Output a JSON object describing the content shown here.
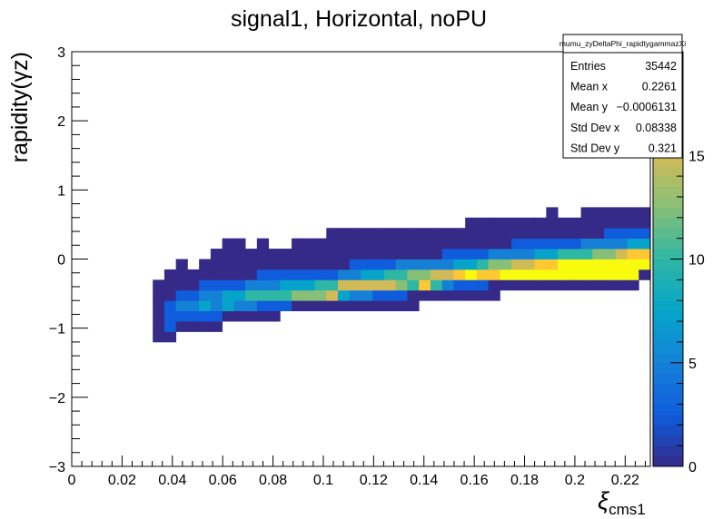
{
  "chart_data": {
    "type": "heatmap",
    "title": "signal1, Horizontal, noPU",
    "xlabel": "ξ",
    "xlabel_sub": "cms1",
    "ylabel": "rapidity(γz)",
    "xlim": [
      0,
      0.23
    ],
    "ylim": [
      -3,
      3
    ],
    "zlim": [
      0,
      20
    ],
    "x_ticks": [
      0,
      0.02,
      0.04,
      0.06,
      0.08,
      0.1,
      0.12,
      0.14,
      0.16,
      0.18,
      0.2,
      0.22
    ],
    "x_tick_labels": [
      "0",
      "0.02",
      "0.04",
      "0.06",
      "0.08",
      "0.1",
      "0.12",
      "0.14",
      "0.16",
      "0.18",
      "0.2",
      "0.22"
    ],
    "y_ticks": [
      -3,
      -2,
      -1,
      0,
      1,
      2,
      3
    ],
    "y_tick_labels": [
      "−3",
      "−2",
      "−1",
      "0",
      "1",
      "2",
      "3"
    ],
    "z_ticks": [
      0,
      5,
      10,
      15
    ],
    "z_tick_labels": [
      "0",
      "5",
      "10",
      "15"
    ],
    "colormap": [
      "#352a87",
      "#0f5cdd",
      "#1481d6",
      "#06a4ca",
      "#2eb7a4",
      "#87bf77",
      "#d1bb59",
      "#fec832",
      "#f9fb0e"
    ],
    "bin_width_x": 0.0046,
    "bin_width_y": 0.15,
    "columns": [
      {
        "x": 0.0345,
        "ybins": [
          -1.125,
          -0.975,
          -0.825,
          -0.675,
          -0.525,
          -0.375
        ],
        "values": [
          1,
          2,
          2,
          2,
          1,
          1
        ]
      },
      {
        "x": 0.0391,
        "ybins": [
          -1.125,
          -0.975,
          -0.825,
          -0.675,
          -0.525,
          -0.375,
          -0.225
        ],
        "values": [
          1,
          3,
          4,
          3,
          2,
          1,
          1
        ]
      },
      {
        "x": 0.0437,
        "ybins": [
          -0.975,
          -0.825,
          -0.675,
          -0.525,
          -0.375,
          -0.225,
          -0.075
        ],
        "values": [
          1,
          4,
          5,
          3,
          2,
          1,
          1
        ]
      },
      {
        "x": 0.0483,
        "ybins": [
          -0.975,
          -0.825,
          -0.675,
          -0.525,
          -0.375,
          -0.225
        ],
        "values": [
          2,
          4,
          6,
          4,
          2,
          1
        ]
      },
      {
        "x": 0.0529,
        "ybins": [
          -0.975,
          -0.825,
          -0.675,
          -0.525,
          -0.375,
          -0.225,
          -0.075
        ],
        "values": [
          1,
          3,
          7,
          5,
          3,
          1,
          1
        ]
      },
      {
        "x": 0.0575,
        "ybins": [
          -0.975,
          -0.825,
          -0.675,
          -0.525,
          -0.375,
          -0.225,
          -0.075,
          0.075
        ],
        "values": [
          1,
          3,
          6,
          6,
          3,
          1,
          1,
          1
        ]
      },
      {
        "x": 0.0621,
        "ybins": [
          -0.825,
          -0.675,
          -0.525,
          -0.375,
          -0.225,
          -0.075,
          0.075,
          0.225
        ],
        "values": [
          2,
          7,
          7,
          4,
          2,
          1,
          1,
          1
        ]
      },
      {
        "x": 0.0667,
        "ybins": [
          -0.825,
          -0.675,
          -0.525,
          -0.375,
          -0.225,
          -0.075,
          0.075,
          0.225
        ],
        "values": [
          2,
          6,
          8,
          4,
          2,
          1,
          1,
          1
        ]
      },
      {
        "x": 0.0713,
        "ybins": [
          -0.825,
          -0.675,
          -0.525,
          -0.375,
          -0.225,
          -0.075,
          0.075
        ],
        "values": [
          1,
          5,
          9,
          5,
          2,
          1,
          1
        ]
      },
      {
        "x": 0.0759,
        "ybins": [
          -0.825,
          -0.675,
          -0.525,
          -0.375,
          -0.225,
          -0.075,
          0.075,
          0.225
        ],
        "values": [
          1,
          4,
          10,
          6,
          3,
          1,
          1,
          1
        ]
      },
      {
        "x": 0.0805,
        "ybins": [
          -0.825,
          -0.675,
          -0.525,
          -0.375,
          -0.225,
          -0.075,
          0.075
        ],
        "values": [
          1,
          3,
          11,
          6,
          3,
          1,
          1
        ]
      },
      {
        "x": 0.0851,
        "ybins": [
          -0.675,
          -0.525,
          -0.375,
          -0.225,
          -0.075,
          0.075
        ],
        "values": [
          3,
          11,
          7,
          3,
          1,
          1
        ]
      },
      {
        "x": 0.0897,
        "ybins": [
          -0.675,
          -0.525,
          -0.375,
          -0.225,
          -0.075,
          0.075,
          0.225
        ],
        "values": [
          2,
          12,
          7,
          3,
          1,
          1,
          1
        ]
      },
      {
        "x": 0.0943,
        "ybins": [
          -0.675,
          -0.525,
          -0.375,
          -0.225,
          -0.075,
          0.075,
          0.225
        ],
        "values": [
          2,
          12,
          8,
          4,
          2,
          1,
          1
        ]
      },
      {
        "x": 0.0989,
        "ybins": [
          -0.675,
          -0.525,
          -0.375,
          -0.225,
          -0.075,
          0.075,
          0.225
        ],
        "values": [
          1,
          13,
          9,
          4,
          2,
          1,
          1
        ]
      },
      {
        "x": 0.1035,
        "ybins": [
          -0.675,
          -0.525,
          -0.375,
          -0.225,
          -0.075,
          0.075,
          0.225,
          0.375
        ],
        "values": [
          1,
          14,
          9,
          4,
          2,
          1,
          1,
          1
        ]
      },
      {
        "x": 0.1081,
        "ybins": [
          -0.675,
          -0.525,
          -0.375,
          -0.225,
          -0.075,
          0.075,
          0.225,
          0.375
        ],
        "values": [
          1,
          8,
          14,
          5,
          2,
          1,
          1,
          1
        ]
      },
      {
        "x": 0.1127,
        "ybins": [
          -0.675,
          -0.525,
          -0.375,
          -0.225,
          -0.075,
          0.075,
          0.225,
          0.375
        ],
        "values": [
          1,
          6,
          14,
          6,
          3,
          1,
          1,
          1
        ]
      },
      {
        "x": 0.1173,
        "ybins": [
          -0.675,
          -0.525,
          -0.375,
          -0.225,
          -0.075,
          0.075,
          0.225,
          0.375
        ],
        "values": [
          1,
          5,
          15,
          7,
          3,
          1,
          1,
          1
        ]
      },
      {
        "x": 0.1219,
        "ybins": [
          -0.675,
          -0.525,
          -0.375,
          -0.225,
          -0.075,
          0.075,
          0.225,
          0.375
        ],
        "values": [
          1,
          4,
          15,
          8,
          3,
          1,
          1,
          1
        ]
      },
      {
        "x": 0.1265,
        "ybins": [
          -0.675,
          -0.525,
          -0.375,
          -0.225,
          -0.075,
          0.075,
          0.225,
          0.375
        ],
        "values": [
          1,
          3,
          14,
          9,
          4,
          2,
          1,
          1
        ]
      },
      {
        "x": 0.1311,
        "ybins": [
          -0.675,
          -0.525,
          -0.375,
          -0.225,
          -0.075,
          0.075,
          0.225,
          0.375
        ],
        "values": [
          1,
          3,
          12,
          11,
          5,
          2,
          1,
          1
        ]
      },
      {
        "x": 0.1357,
        "ybins": [
          -0.675,
          -0.525,
          -0.375,
          -0.225,
          -0.075,
          0.075,
          0.225,
          0.375
        ],
        "values": [
          1,
          2,
          10,
          13,
          5,
          2,
          1,
          1
        ]
      },
      {
        "x": 0.1403,
        "ybins": [
          -0.525,
          -0.375,
          -0.225,
          -0.075,
          0.075,
          0.225,
          0.375
        ],
        "values": [
          2,
          17,
          12,
          5,
          2,
          1,
          1
        ]
      },
      {
        "x": 0.1449,
        "ybins": [
          -0.525,
          -0.375,
          -0.225,
          -0.075,
          0.075,
          0.225,
          0.375
        ],
        "values": [
          1,
          10,
          14,
          6,
          2,
          1,
          1
        ]
      },
      {
        "x": 0.1495,
        "ybins": [
          -0.525,
          -0.375,
          -0.225,
          -0.075,
          0.075,
          0.225,
          0.375
        ],
        "values": [
          1,
          6,
          15,
          6,
          3,
          1,
          1
        ]
      },
      {
        "x": 0.1541,
        "ybins": [
          -0.525,
          -0.375,
          -0.225,
          -0.075,
          0.075,
          0.225,
          0.375
        ],
        "values": [
          1,
          4,
          17,
          7,
          3,
          1,
          1
        ]
      },
      {
        "x": 0.1587,
        "ybins": [
          -0.525,
          -0.375,
          -0.225,
          -0.075,
          0.075,
          0.225,
          0.375,
          0.525
        ],
        "values": [
          1,
          3,
          18,
          8,
          4,
          2,
          1,
          1
        ]
      },
      {
        "x": 0.1633,
        "ybins": [
          -0.525,
          -0.375,
          -0.225,
          -0.075,
          0.075,
          0.225,
          0.375,
          0.525
        ],
        "values": [
          1,
          3,
          17,
          10,
          4,
          2,
          1,
          1
        ]
      },
      {
        "x": 0.1679,
        "ybins": [
          -0.525,
          -0.375,
          -0.225,
          -0.075,
          0.075,
          0.225,
          0.375,
          0.525
        ],
        "values": [
          1,
          2,
          16,
          12,
          5,
          2,
          1,
          1
        ]
      },
      {
        "x": 0.1725,
        "ybins": [
          -0.375,
          -0.225,
          -0.075,
          0.075,
          0.225,
          0.375,
          0.525
        ],
        "values": [
          2,
          18,
          13,
          5,
          2,
          1,
          1
        ]
      },
      {
        "x": 0.1771,
        "ybins": [
          -0.375,
          -0.225,
          -0.075,
          0.075,
          0.225,
          0.375,
          0.525
        ],
        "values": [
          2,
          19,
          14,
          6,
          3,
          1,
          1
        ]
      },
      {
        "x": 0.1817,
        "ybins": [
          -0.375,
          -0.225,
          -0.075,
          0.075,
          0.225,
          0.375,
          0.525
        ],
        "values": [
          2,
          19,
          15,
          6,
          3,
          1,
          1
        ]
      },
      {
        "x": 0.1863,
        "ybins": [
          -0.375,
          -0.225,
          -0.075,
          0.075,
          0.225,
          0.375,
          0.525
        ],
        "values": [
          2,
          20,
          16,
          7,
          3,
          1,
          1
        ]
      },
      {
        "x": 0.1909,
        "ybins": [
          -0.375,
          -0.225,
          -0.075,
          0.075,
          0.225,
          0.375,
          0.525,
          0.675
        ],
        "values": [
          2,
          18,
          17,
          8,
          4,
          2,
          1,
          1
        ]
      },
      {
        "x": 0.1955,
        "ybins": [
          -0.375,
          -0.225,
          -0.075,
          0.075,
          0.225,
          0.375,
          0.525
        ],
        "values": [
          2,
          20,
          20,
          9,
          4,
          2,
          1
        ]
      },
      {
        "x": 0.2001,
        "ybins": [
          -0.375,
          -0.225,
          -0.075,
          0.075,
          0.225,
          0.375,
          0.525
        ],
        "values": [
          1,
          20,
          20,
          9,
          4,
          2,
          1
        ]
      },
      {
        "x": 0.2047,
        "ybins": [
          -0.375,
          -0.225,
          -0.075,
          0.075,
          0.225,
          0.375,
          0.525,
          0.675
        ],
        "values": [
          1,
          20,
          20,
          11,
          5,
          2,
          1,
          1
        ]
      },
      {
        "x": 0.2093,
        "ybins": [
          -0.375,
          -0.225,
          -0.075,
          0.075,
          0.225,
          0.375,
          0.525,
          0.675
        ],
        "values": [
          1,
          19,
          20,
          12,
          5,
          2,
          1,
          1
        ]
      },
      {
        "x": 0.2139,
        "ybins": [
          -0.375,
          -0.225,
          -0.075,
          0.075,
          0.225,
          0.375,
          0.525,
          0.675
        ],
        "values": [
          1,
          20,
          20,
          13,
          6,
          3,
          1,
          1
        ]
      },
      {
        "x": 0.2185,
        "ybins": [
          -0.375,
          -0.225,
          -0.075,
          0.075,
          0.225,
          0.375,
          0.525,
          0.675
        ],
        "values": [
          1,
          20,
          20,
          14,
          6,
          3,
          1,
          1
        ]
      },
      {
        "x": 0.2231,
        "ybins": [
          -0.375,
          -0.225,
          -0.075,
          0.075,
          0.225,
          0.375,
          0.525,
          0.675
        ],
        "values": [
          1,
          20,
          20,
          16,
          7,
          3,
          1,
          1
        ]
      },
      {
        "x": 0.2277,
        "ybins": [
          -0.225,
          -0.075,
          0.075,
          0.225,
          0.375,
          0.525,
          0.675
        ],
        "values": [
          1,
          18,
          16,
          7,
          3,
          1,
          1
        ]
      }
    ],
    "stats": {
      "name": "mumu_zyDeltaPhi_rapidtygammazXi",
      "rows": [
        {
          "label": "Entries",
          "value": "35442"
        },
        {
          "label": "Mean x",
          "value": "0.2261"
        },
        {
          "label": "Mean y",
          "value": "−0.0006131"
        },
        {
          "label": "Std Dev x",
          "value": "0.08338"
        },
        {
          "label": "Std Dev y",
          "value": "0.321"
        }
      ]
    }
  }
}
